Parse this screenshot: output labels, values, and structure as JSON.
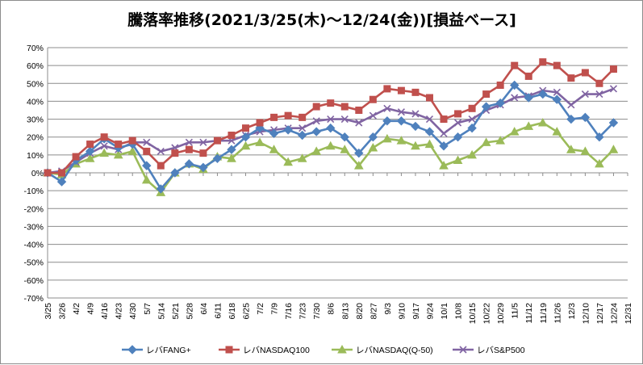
{
  "chart_data": {
    "type": "line",
    "title": "騰落率推移(2021/3/25(木)～12/24(金))[損益ベース]",
    "xlabel": "",
    "ylabel": "",
    "ylim": [
      -70,
      70
    ],
    "y_step": 10,
    "y_unit": "%",
    "grid": true,
    "legend_position": "bottom",
    "categories": [
      "3/25",
      "3/26",
      "4/2",
      "4/9",
      "4/16",
      "4/23",
      "4/30",
      "5/7",
      "5/14",
      "5/21",
      "5/28",
      "6/4",
      "6/11",
      "6/18",
      "6/25",
      "7/2",
      "7/9",
      "7/16",
      "7/23",
      "7/30",
      "8/6",
      "8/13",
      "8/20",
      "8/27",
      "9/3",
      "9/10",
      "9/17",
      "9/24",
      "10/1",
      "10/8",
      "10/15",
      "10/22",
      "10/29",
      "11/5",
      "11/12",
      "11/19",
      "11/26",
      "12/3",
      "12/10",
      "12/17",
      "12/24",
      "12/31"
    ],
    "series": [
      {
        "name": "レバFANG+",
        "color": "#4f81bd",
        "marker": "diamond",
        "values": [
          0,
          -5,
          7,
          12,
          19,
          14,
          16,
          4,
          -9,
          0,
          5,
          3,
          8,
          13,
          20,
          25,
          22,
          24,
          21,
          23,
          25,
          20,
          11,
          20,
          29,
          29,
          26,
          23,
          15,
          20,
          25,
          37,
          39,
          49,
          42,
          44,
          41,
          30,
          31,
          20,
          28,
          null
        ]
      },
      {
        "name": "レバNASDAQ100",
        "color": "#c0504d",
        "marker": "square",
        "values": [
          0,
          0,
          9,
          16,
          20,
          16,
          18,
          12,
          4,
          11,
          13,
          11,
          18,
          21,
          25,
          28,
          31,
          32,
          31,
          37,
          39,
          37,
          35,
          41,
          47,
          46,
          45,
          42,
          30,
          33,
          36,
          44,
          49,
          60,
          54,
          62,
          60,
          53,
          56,
          50,
          58,
          null
        ]
      },
      {
        "name": "レバNASDAQ(Q-50)",
        "color": "#9bbb59",
        "marker": "triangle",
        "values": [
          0,
          -1,
          5,
          8,
          11,
          10,
          12,
          -4,
          -11,
          0,
          5,
          2,
          9,
          8,
          15,
          17,
          13,
          6,
          8,
          12,
          15,
          13,
          4,
          14,
          19,
          18,
          15,
          16,
          4,
          7,
          10,
          17,
          18,
          23,
          26,
          28,
          23,
          13,
          12,
          5,
          13,
          null
        ]
      },
      {
        "name": "レバS&P500",
        "color": "#8064a2",
        "marker": "x",
        "values": [
          0,
          1,
          6,
          11,
          15,
          13,
          17,
          17,
          12,
          14,
          17,
          17,
          18,
          18,
          21,
          23,
          24,
          25,
          25,
          29,
          30,
          30,
          28,
          32,
          36,
          34,
          33,
          30,
          22,
          28,
          30,
          35,
          38,
          42,
          43,
          46,
          45,
          38,
          44,
          44,
          47,
          null
        ]
      }
    ]
  }
}
